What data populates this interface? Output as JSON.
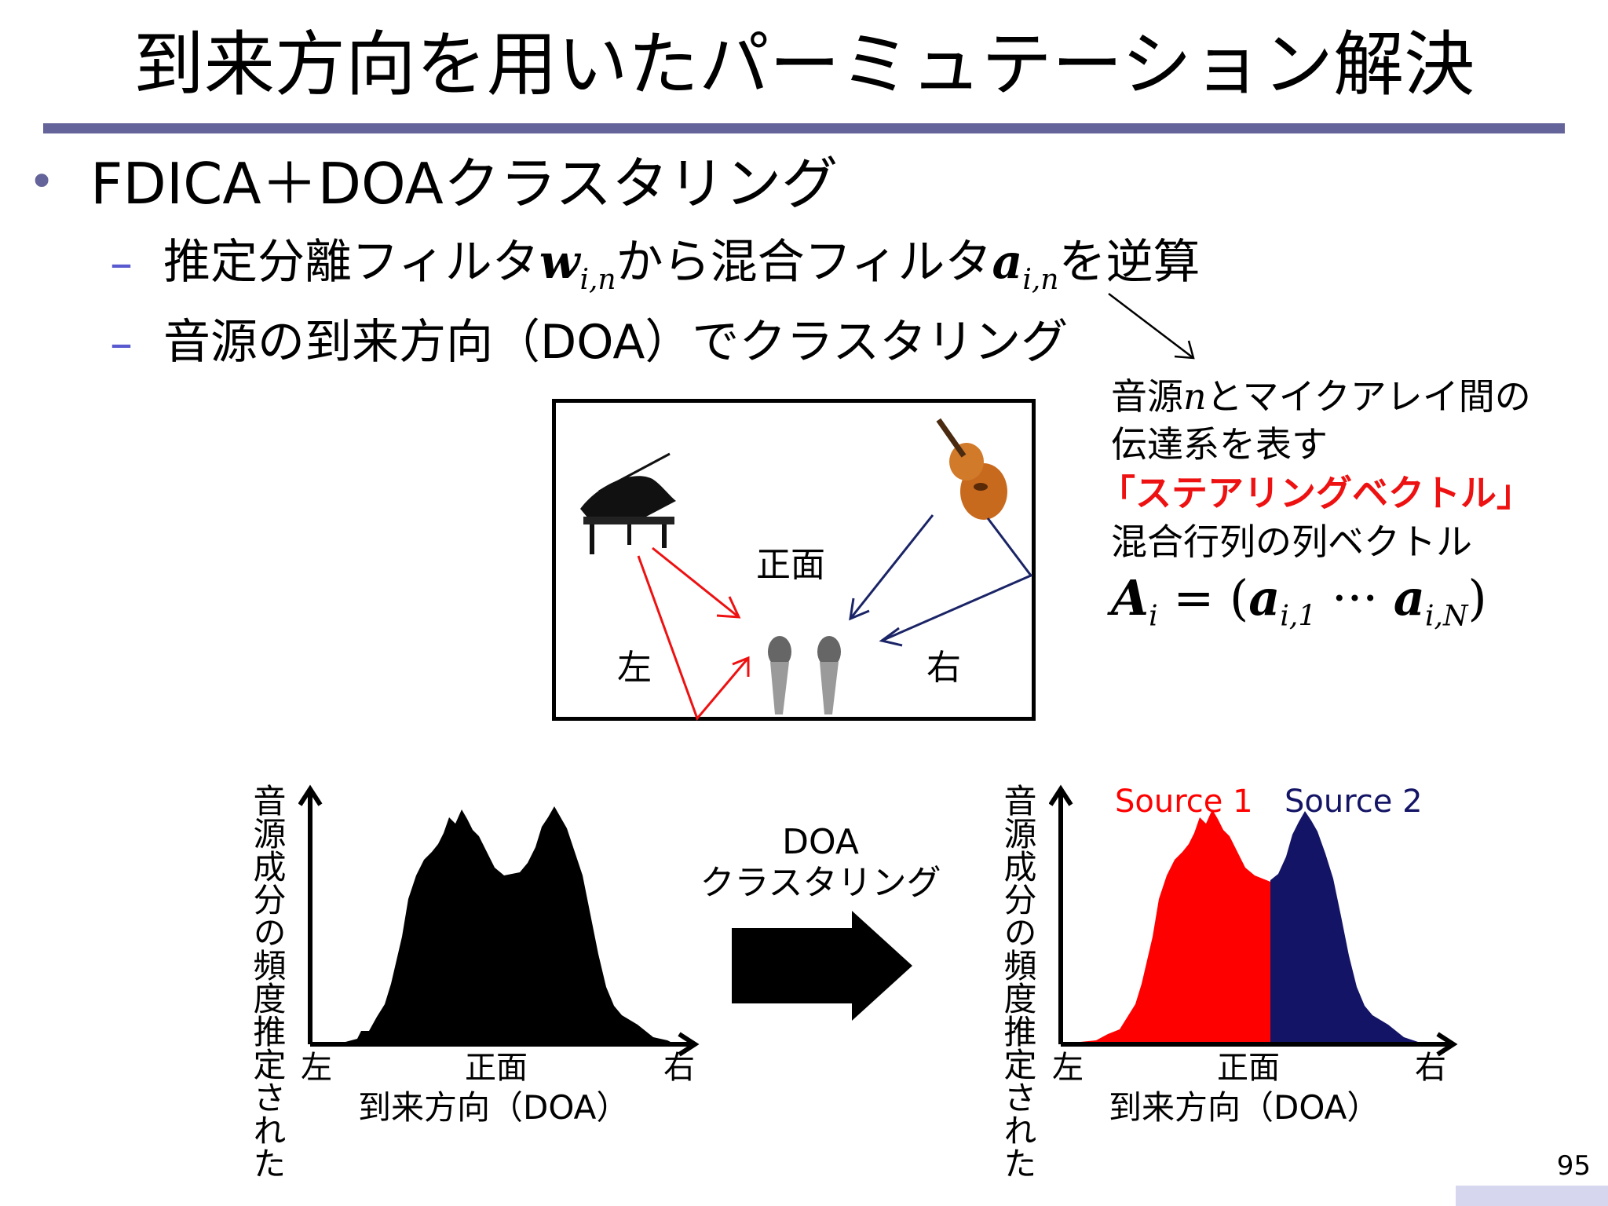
{
  "slide": {
    "title": "到来方向を用いたパーミュテーション解決",
    "page_number": "95"
  },
  "bullets": {
    "main": "FDICA＋DOAクラスタリング",
    "sub1": {
      "p1": "推定分離フィルタ",
      "w": "w",
      "sub_w": "i,n",
      "p2": "から混合フィルタ",
      "a": "a",
      "sub_a": "i,n",
      "p3": "を逆算"
    },
    "sub2": "音源の到来方向（DOA）でクラスタリング"
  },
  "annotation": {
    "line1_a": "音源",
    "line1_n": "n",
    "line1_b": "とマイクアレイ間の",
    "line2": "伝達系を表す",
    "line3": "「ステアリングベクトル」",
    "line4": "混合行列の列ベクトル",
    "formula": {
      "A": "A",
      "A_sub": "i",
      "eq": " = (",
      "a1": "a",
      "a1_sub": "i,1",
      "dots": " ··· ",
      "a2": "a",
      "a2_sub": "i,N",
      "close": ")"
    }
  },
  "scene": {
    "front": "正面",
    "left": "左",
    "right": "右",
    "colors": {
      "left_arrows": "#ee1111",
      "right_arrows": "#1a2466"
    }
  },
  "arrow_block": {
    "line1": "DOA",
    "line2": "クラスタリング"
  },
  "histogram_left": {
    "ylabel_line1": "推定された",
    "ylabel_line2": "音源成分の頻度",
    "tick_left": "左",
    "tick_center": "正面",
    "tick_right": "右",
    "xlabel": "到来方向（DOA）"
  },
  "histogram_right": {
    "ylabel_line1": "推定された",
    "ylabel_line2": "音源成分の頻度",
    "tick_left": "左",
    "tick_center": "正面",
    "tick_right": "右",
    "xlabel": "到来方向（DOA）",
    "legend": [
      {
        "name": "Source 1",
        "color": "#ff0000"
      },
      {
        "name": "Source 2",
        "color": "#141466"
      }
    ]
  },
  "chart_data": {
    "type": "area",
    "x_categories": [
      "左",
      "正面",
      "右"
    ],
    "peaks": [
      "left-of-center",
      "right-of-center"
    ],
    "series": [
      {
        "name": "Source 1",
        "color": "#ff0000"
      },
      {
        "name": "Source 2",
        "color": "#141466"
      }
    ],
    "grid": false
  }
}
